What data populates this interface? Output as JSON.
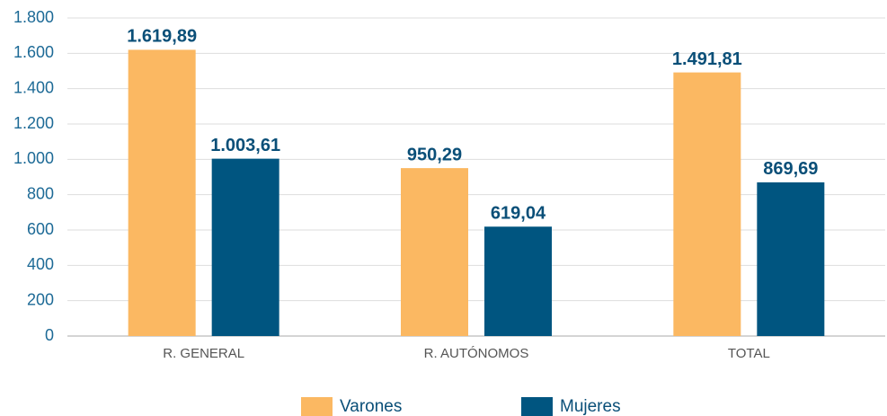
{
  "chart_data": {
    "type": "bar",
    "categories": [
      "R. GENERAL",
      "R. AUTÓNOMOS",
      "TOTAL"
    ],
    "series": [
      {
        "name": "Varones",
        "color": "#fbb862",
        "values": [
          1619.89,
          950.29,
          1491.81
        ],
        "value_labels": [
          "1.619,89",
          "950,29",
          "1.491,81"
        ]
      },
      {
        "name": "Mujeres",
        "color": "#005580",
        "values": [
          1003.61,
          619.04,
          869.69
        ],
        "value_labels": [
          "1.003,61",
          "619,04",
          "869,69"
        ]
      }
    ],
    "ylim": [
      0,
      1800
    ],
    "yticks": [
      0,
      200,
      400,
      600,
      800,
      {
        "value": 1000,
        "label": "1.000"
      },
      {
        "value": 1200,
        "label": "1.200"
      },
      {
        "value": 1400,
        "label": "1.400"
      },
      {
        "value": 1600,
        "label": "1.600"
      },
      {
        "value": 1800,
        "label": "1.800"
      }
    ],
    "grid": true,
    "legend": "bottom"
  }
}
